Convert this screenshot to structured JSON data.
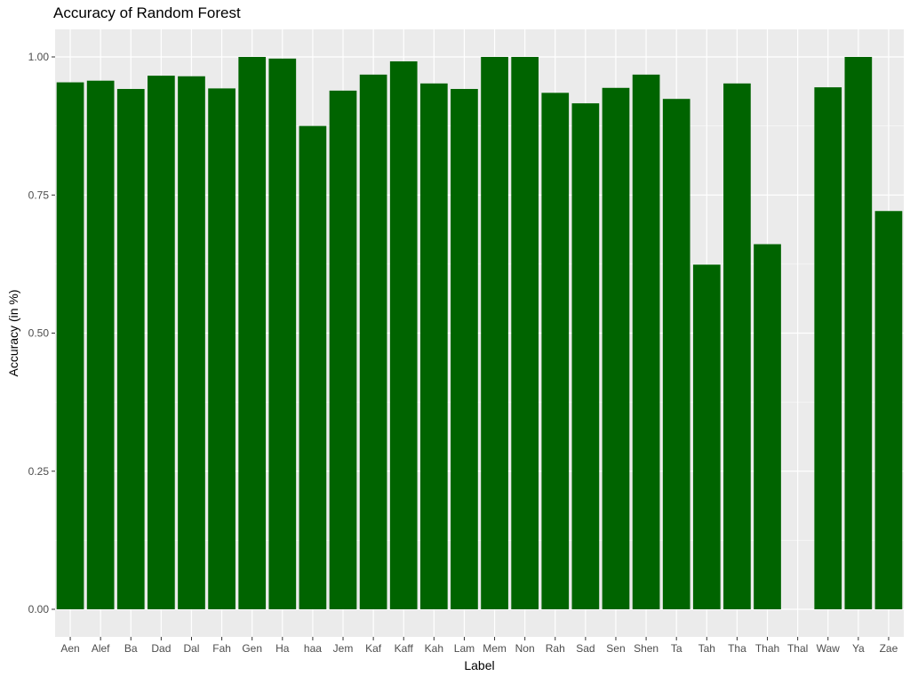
{
  "chart_data": {
    "type": "bar",
    "title": "Accuracy of Random Forest",
    "xlabel": "Label",
    "ylabel": "Accuracy (in %)",
    "ylim": [
      -0.04,
      1.05
    ],
    "yticks": [
      0.0,
      0.25,
      0.5,
      0.75,
      1.0
    ],
    "ytick_labels": [
      "0.00",
      "0.25",
      "0.50",
      "0.75",
      "1.00"
    ],
    "grid": true,
    "bar_color": "#006400",
    "panel_color": "#ebebeb",
    "grid_color": "#ffffff",
    "categories": [
      "Aen",
      "Alef",
      "Ba",
      "Dad",
      "Dal",
      "Fah",
      "Gen",
      "Ha",
      "haa",
      "Jem",
      "Kaf",
      "Kaff",
      "Kah",
      "Lam",
      "Mem",
      "Non",
      "Rah",
      "Sad",
      "Sen",
      "Shen",
      "Ta",
      "Tah",
      "Tha",
      "Thah",
      "Thal",
      "Waw",
      "Ya",
      "Zae"
    ],
    "values": [
      0.954,
      0.957,
      0.942,
      0.966,
      0.965,
      0.943,
      1.0,
      0.997,
      0.875,
      0.939,
      0.968,
      0.992,
      0.952,
      0.942,
      1.0,
      1.0,
      0.935,
      0.916,
      0.944,
      0.968,
      0.924,
      0.624,
      0.952,
      0.661,
      0.0,
      0.945,
      1.0,
      0.721
    ]
  }
}
